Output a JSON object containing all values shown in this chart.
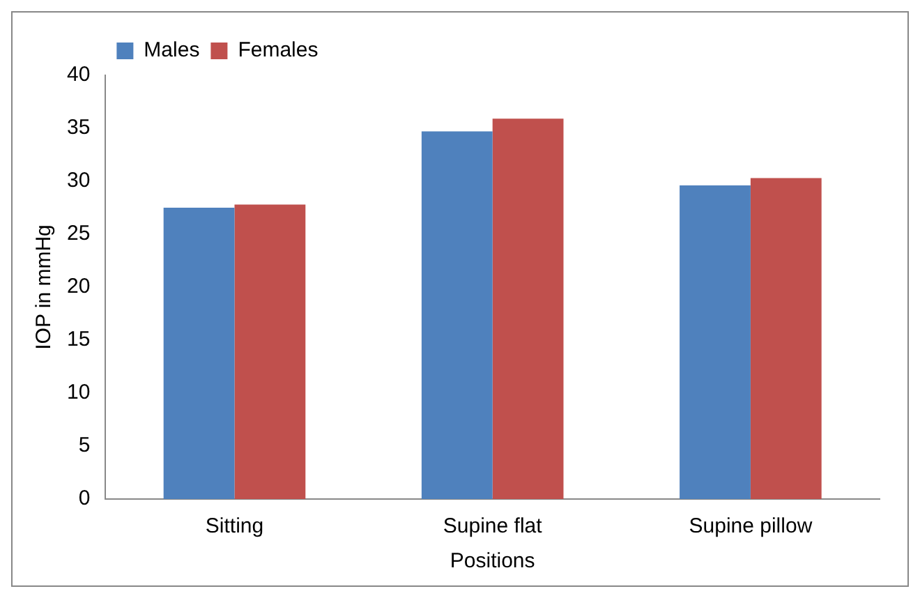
{
  "chart_data": {
    "type": "bar",
    "xlabel": "Positions",
    "ylabel": "IOP in mmHg",
    "categories": [
      "Sitting",
      "Supine flat",
      "Supine pillow"
    ],
    "series": [
      {
        "name": "Males",
        "color": "#4f81bd",
        "values": [
          27.5,
          34.7,
          29.6
        ]
      },
      {
        "name": "Females",
        "color": "#c0504d",
        "values": [
          27.8,
          35.9,
          30.3
        ]
      }
    ],
    "ylim": [
      0,
      40
    ],
    "yticks": [
      0,
      5,
      10,
      15,
      20,
      25,
      30,
      35,
      40
    ],
    "grid": false,
    "legend": "top left"
  }
}
